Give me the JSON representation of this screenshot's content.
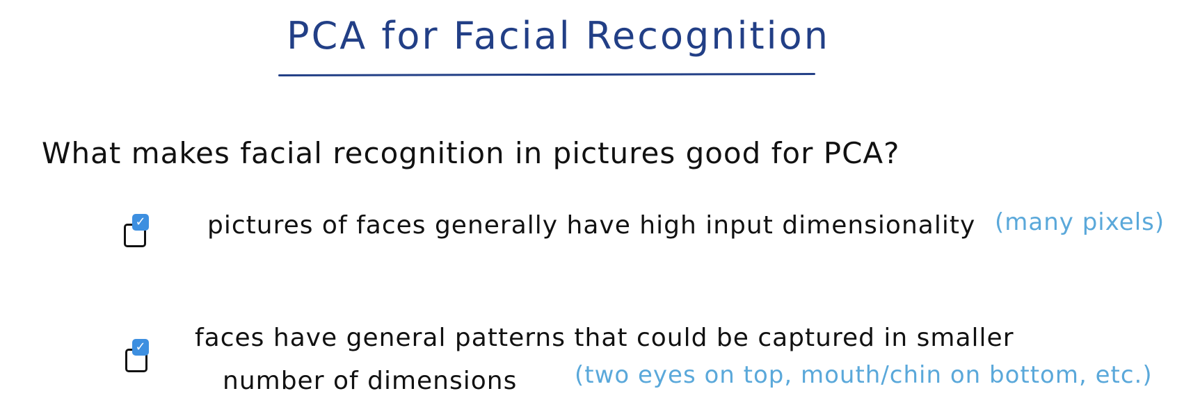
{
  "title": "PCA for Facial Recognition",
  "question": "What makes facial recognition in pictures good for PCA?",
  "options": [
    {
      "line1": "pictures of faces generally have high input dimensionality",
      "note": "(many pixels)",
      "checked": true
    },
    {
      "line1": "faces have general patterns that could be captured in smaller",
      "line2": "number of dimensions",
      "note": "(two eyes on top, mouth/chin on bottom, etc.)",
      "checked": true
    }
  ],
  "colors": {
    "title": "#223f86",
    "text": "#111111",
    "note": "#5aa8da",
    "check": "#3d8fe0"
  },
  "checkmark_glyph": "✓"
}
